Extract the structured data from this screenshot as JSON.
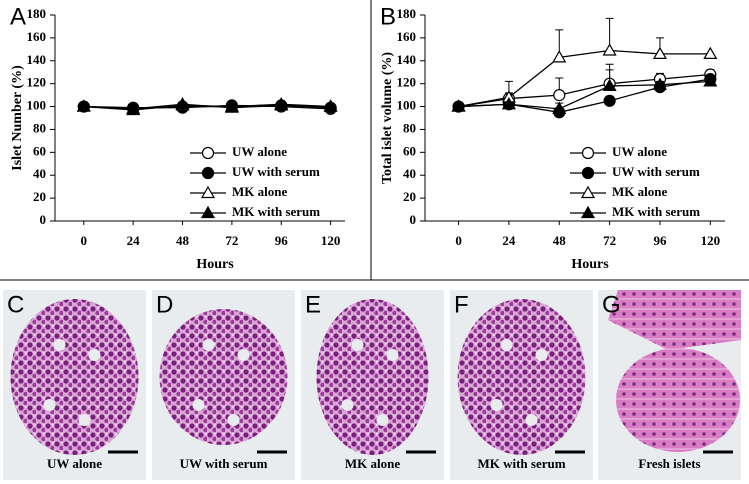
{
  "chart_data": [
    {
      "type": "line",
      "panel_label": "A",
      "y_label": "Islet Number (%)",
      "x_label": "Hours",
      "x": [
        0,
        24,
        48,
        72,
        96,
        120
      ],
      "xlim": [
        -14,
        127
      ],
      "xticks": [
        0,
        24,
        48,
        72,
        96,
        120
      ],
      "ylim": [
        0,
        180
      ],
      "yticks": [
        0,
        20,
        40,
        60,
        80,
        100,
        120,
        140,
        160,
        180
      ],
      "legend": "lower right",
      "series": [
        {
          "name": "UW alone",
          "color": "#000000",
          "marker": "circle",
          "filled": false,
          "values": [
            100,
            99,
            99,
            101,
            100,
            98
          ]
        },
        {
          "name": "UW with serum",
          "color": "#000000",
          "marker": "circle",
          "filled": true,
          "values": [
            100,
            98,
            100,
            100,
            101,
            99
          ]
        },
        {
          "name": "MK alone",
          "color": "#000000",
          "marker": "triangle",
          "filled": false,
          "values": [
            100,
            97,
            101,
            100,
            102,
            100
          ]
        },
        {
          "name": "MK with serum",
          "color": "#000000",
          "marker": "triangle",
          "filled": true,
          "values": [
            100,
            98,
            102,
            99,
            101,
            100
          ]
        }
      ]
    },
    {
      "type": "line",
      "panel_label": "B",
      "y_label": "Total islet volume (%)",
      "x_label": "Hours",
      "x": [
        0,
        24,
        48,
        72,
        96,
        120
      ],
      "xlim": [
        -16,
        127
      ],
      "xticks": [
        0,
        24,
        48,
        72,
        96,
        120
      ],
      "ylim": [
        0,
        180
      ],
      "yticks": [
        0,
        20,
        40,
        60,
        80,
        100,
        120,
        140,
        160,
        180
      ],
      "legend": "lower right",
      "series": [
        {
          "name": "UW alone",
          "color": "#000000",
          "marker": "circle",
          "filled": false,
          "values": [
            100,
            107,
            110,
            120,
            124,
            128
          ],
          "errors": [
            0,
            5,
            15,
            17,
            5,
            4
          ]
        },
        {
          "name": "UW with serum",
          "color": "#000000",
          "marker": "circle",
          "filled": true,
          "values": [
            100,
            102,
            95,
            105,
            117,
            124
          ],
          "errors": [
            0,
            2,
            3,
            4,
            3,
            2
          ]
        },
        {
          "name": "MK alone",
          "color": "#000000",
          "marker": "triangle",
          "filled": false,
          "values": [
            100,
            108,
            143,
            149,
            146,
            146
          ],
          "errors": [
            0,
            14,
            24,
            28,
            14,
            0
          ]
        },
        {
          "name": "MK with serum",
          "color": "#000000",
          "marker": "triangle",
          "filled": true,
          "values": [
            100,
            102,
            98,
            118,
            119,
            122
          ],
          "errors": [
            0,
            2,
            5,
            14,
            3,
            2
          ]
        }
      ]
    }
  ],
  "image_panels": [
    {
      "letter": "C",
      "caption": "UW alone"
    },
    {
      "letter": "D",
      "caption": "UW with serum"
    },
    {
      "letter": "E",
      "caption": "MK alone"
    },
    {
      "letter": "F",
      "caption": "MK with serum"
    },
    {
      "letter": "G",
      "caption": "Fresh islets"
    }
  ]
}
